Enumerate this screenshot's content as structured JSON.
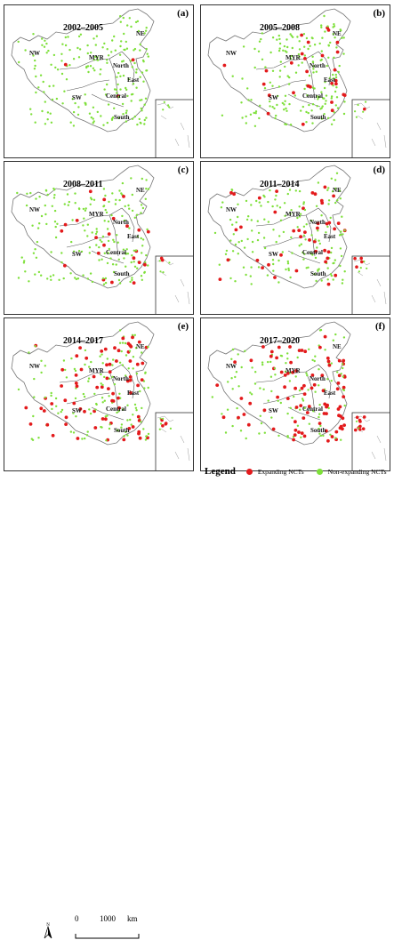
{
  "panels": [
    {
      "letter": "(a)",
      "period": "2002–2005",
      "expanding_density": 0.05
    },
    {
      "letter": "(b)",
      "period": "2005–2008",
      "expanding_density": 0.22
    },
    {
      "letter": "(c)",
      "period": "2008–2011",
      "expanding_density": 0.25
    },
    {
      "letter": "(d)",
      "period": "2011–2014",
      "expanding_density": 0.42
    },
    {
      "letter": "(e)",
      "period": "2014–2017",
      "expanding_density": 0.52
    },
    {
      "letter": "(f)",
      "period": "2017–2020",
      "expanding_density": 0.68
    }
  ],
  "regions": {
    "nw": "NW",
    "myr": "MYR",
    "ne": "NE",
    "north": "North",
    "east": "East",
    "sw": "SW",
    "central": "Central",
    "south": "South"
  },
  "scale": {
    "zero": "0",
    "max": "1000",
    "unit": "km"
  },
  "north_label": "N",
  "legend": {
    "title": "Legend",
    "expanding": "Expanding  NCTs",
    "nonexpanding": "Non-expanding NCTs",
    "expanding_color": "#e31a1c",
    "nonexpanding_color": "#7ee03a"
  }
}
